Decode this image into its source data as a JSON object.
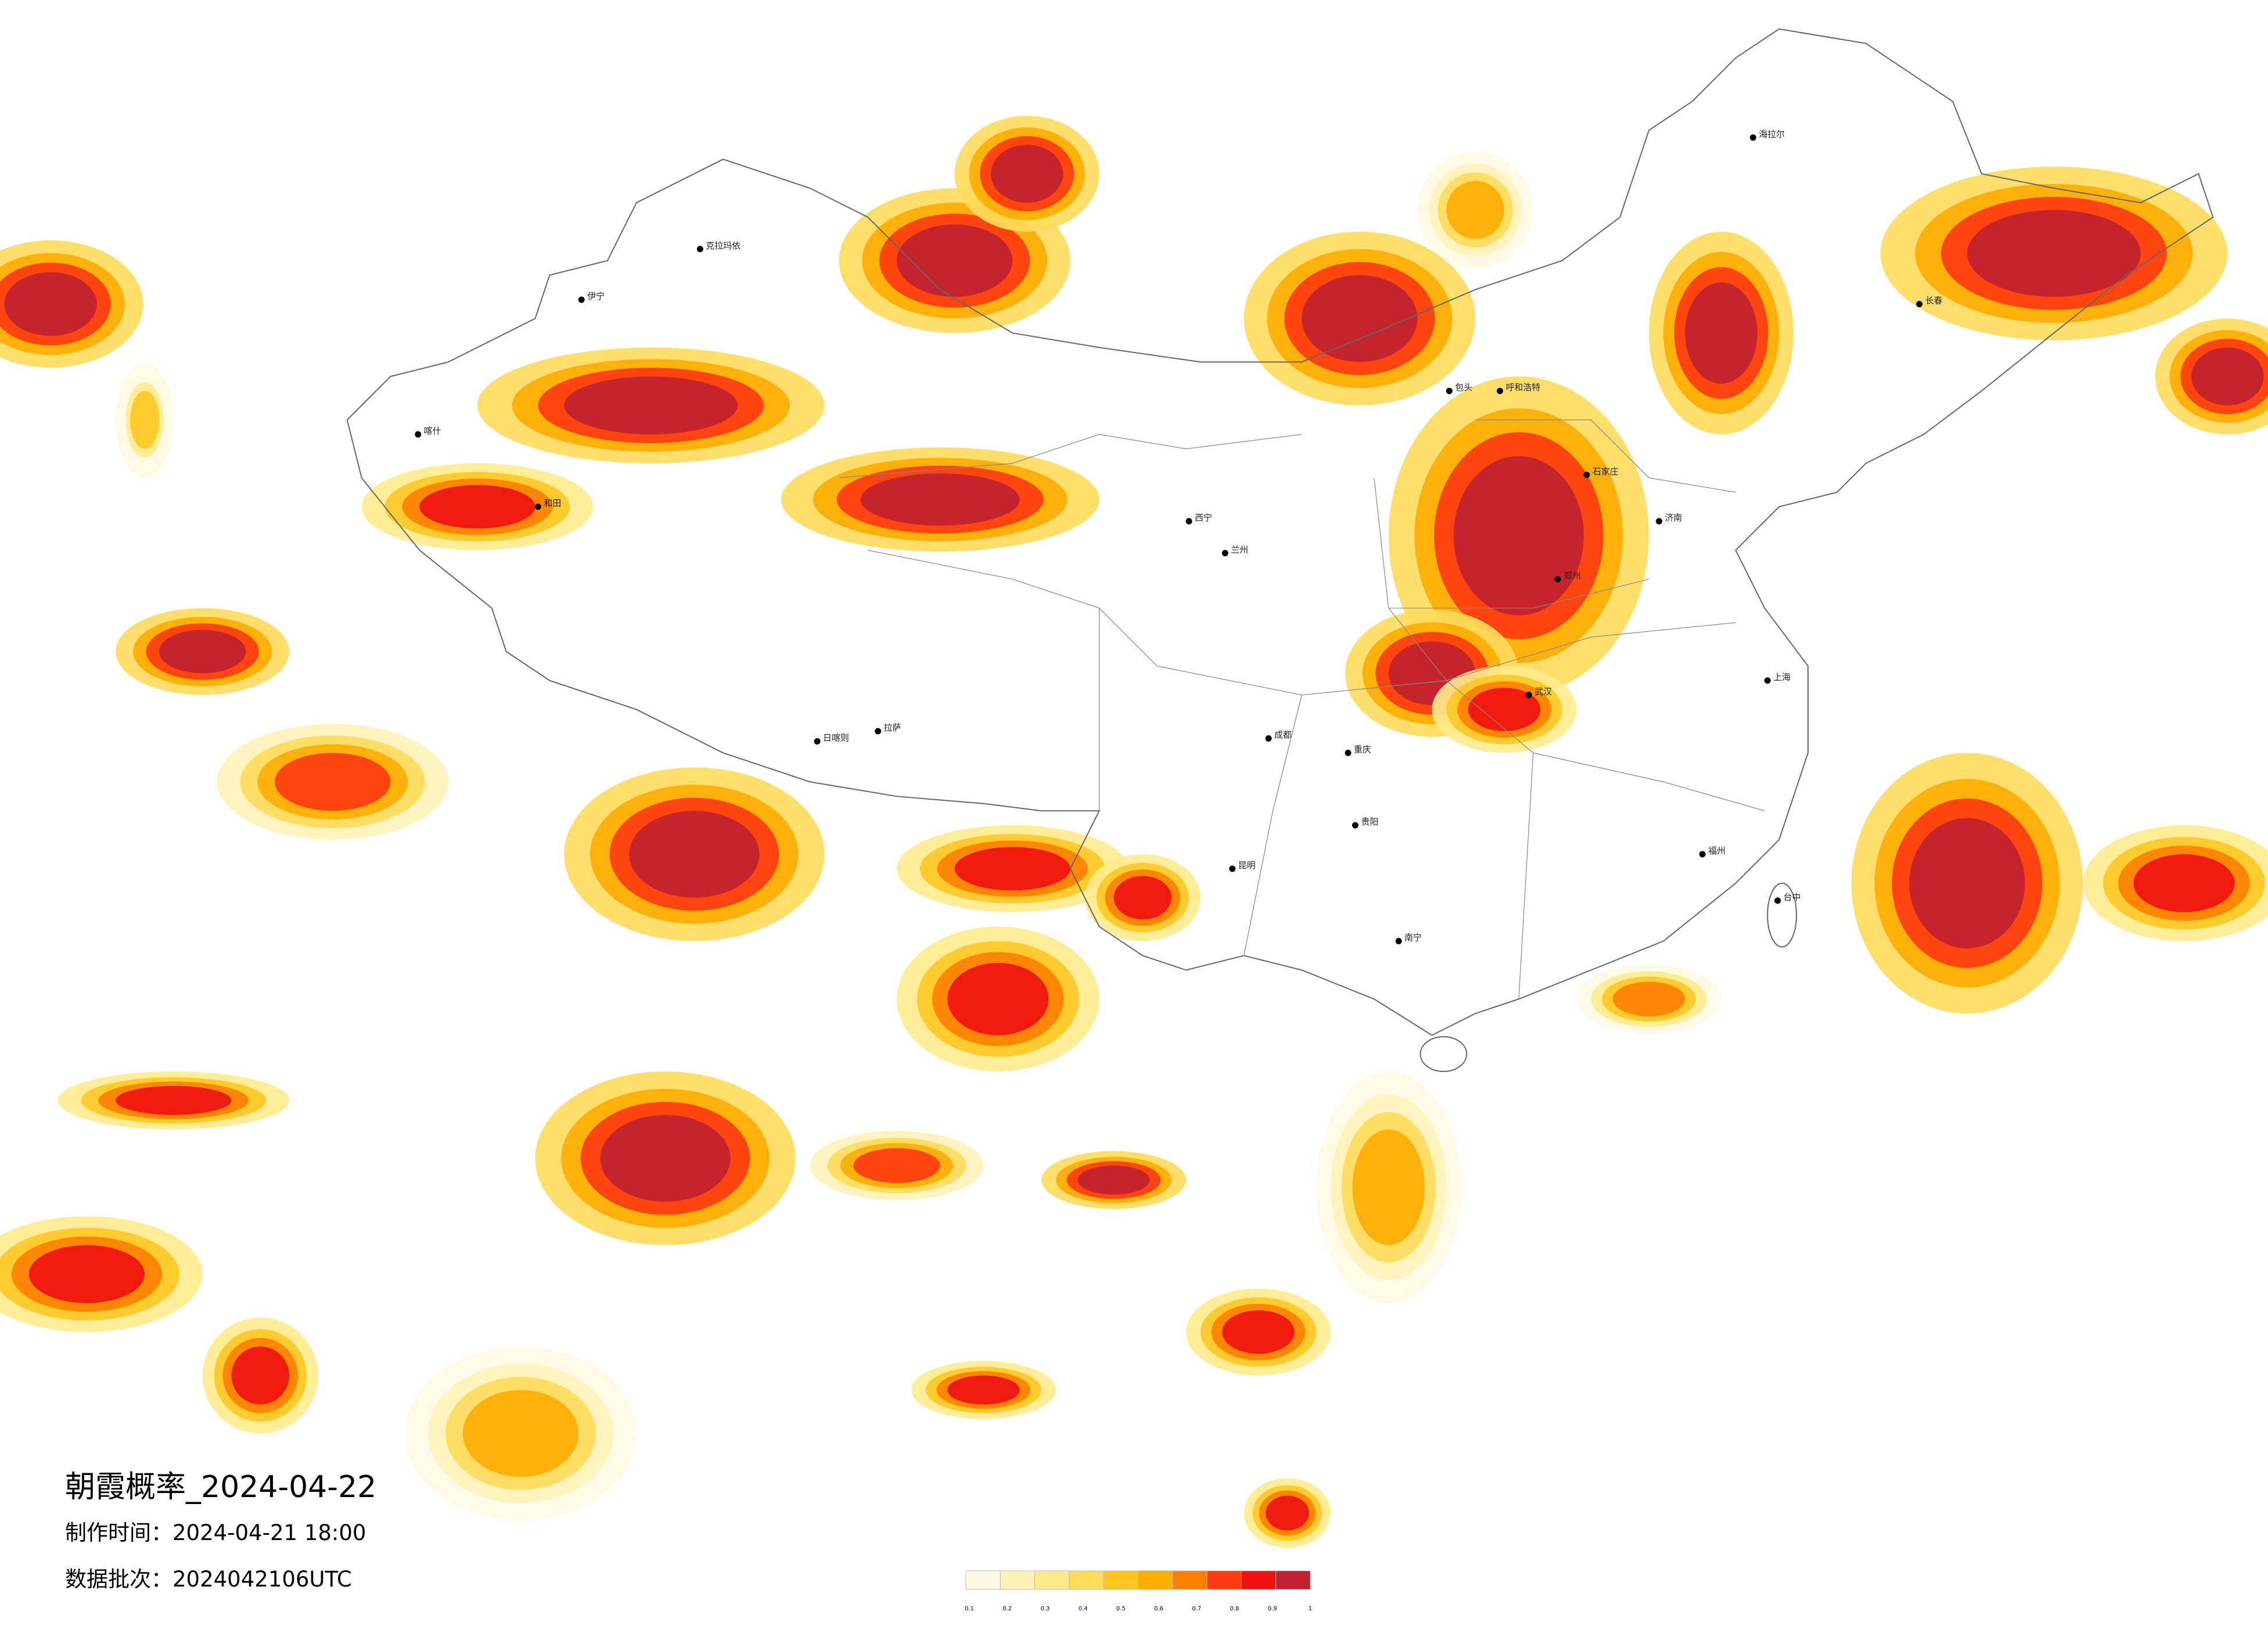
{
  "title": "朝霞概率_2024-04-22",
  "made_time": "制作时间：2024-04-21 18:00",
  "batch": "数据批次：2024042106UTC",
  "colorbar": {
    "ticks": [
      0.1,
      0.2,
      0.3,
      0.4,
      0.5,
      0.6,
      0.7,
      0.8,
      0.9,
      1
    ],
    "colors": [
      "#fff9e3",
      "#fff3b8",
      "#ffeb8c",
      "#ffdc5c",
      "#ffc622",
      "#ffab00",
      "#ff7f00",
      "#ff3a10",
      "#ee1010",
      "#c02030"
    ]
  },
  "cities": [
    "克拉玛依",
    "伊宁",
    "喀什",
    "和田",
    "拉萨",
    "日喀则",
    "西宁",
    "兰州",
    "成都",
    "重庆",
    "昆明",
    "贵阳",
    "南宁",
    "武汉",
    "郑州",
    "上海",
    "福州",
    "台中",
    "长春",
    "海拉尔",
    "呼和浩特",
    "包头",
    "石家庄",
    "济南"
  ]
}
